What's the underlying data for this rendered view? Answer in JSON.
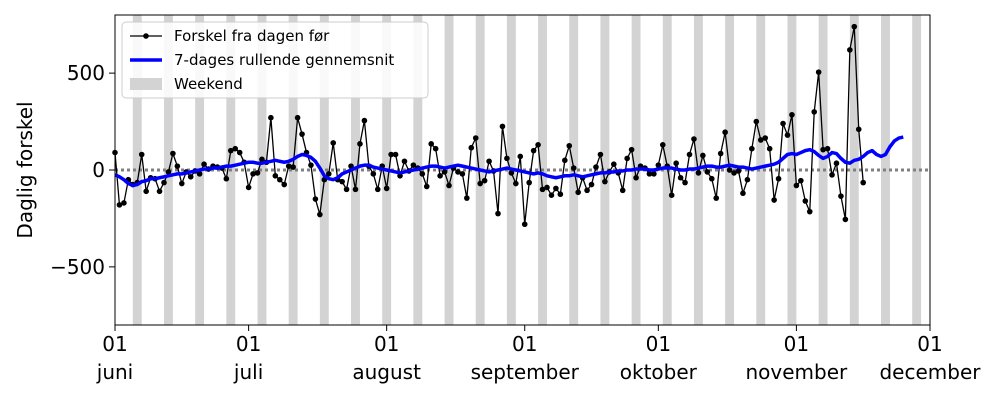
{
  "chart_data": {
    "type": "line",
    "title": "",
    "xlabel": "",
    "ylabel": "Daglig forskel",
    "xlim": [
      "2021-06-01",
      "2021-12-01"
    ],
    "ylim": [
      -800,
      800
    ],
    "y_ticks": [
      500,
      0,
      -500
    ],
    "y_tick_labels": [
      "500",
      "0",
      "−500"
    ],
    "x_ticks": [
      {
        "date": "2021-06-01",
        "day": "01",
        "month": "juni"
      },
      {
        "date": "2021-07-01",
        "day": "01",
        "month": "juli"
      },
      {
        "date": "2021-08-01",
        "day": "01",
        "month": "august"
      },
      {
        "date": "2021-09-01",
        "day": "01",
        "month": "september"
      },
      {
        "date": "2021-10-01",
        "day": "01",
        "month": "oktober"
      },
      {
        "date": "2021-11-01",
        "day": "01",
        "month": "november"
      },
      {
        "date": "2021-12-01",
        "day": "01",
        "month": "december"
      }
    ],
    "grid": false,
    "legend_position": "top-left",
    "legend": [
      {
        "label": "Forskel fra dagen før",
        "kind": "line-marker",
        "color": "#000000"
      },
      {
        "label": "7-dages rullende gennemsnit",
        "kind": "line",
        "color": "#0000ff"
      },
      {
        "label": "Weekend",
        "kind": "patch",
        "color": "#d3d3d3"
      }
    ],
    "start_date": "2021-06-01",
    "weekend_color": "#d3d3d3",
    "zero_line_color": "#808080",
    "series": [
      {
        "name": "Forskel fra dagen før",
        "color": "#000000",
        "marker": "circle",
        "values": [
          90,
          -180,
          -170,
          -50,
          -75,
          -65,
          80,
          -110,
          -40,
          -45,
          -110,
          -65,
          -10,
          85,
          20,
          -70,
          -10,
          -35,
          -5,
          -20,
          30,
          5,
          20,
          15,
          10,
          -45,
          100,
          110,
          90,
          40,
          -90,
          -20,
          -15,
          55,
          40,
          270,
          -30,
          -50,
          -75,
          20,
          15,
          270,
          185,
          90,
          25,
          -150,
          -230,
          -50,
          -20,
          140,
          -50,
          -60,
          -100,
          20,
          -100,
          135,
          255,
          20,
          -20,
          -100,
          20,
          -95,
          80,
          80,
          -30,
          45,
          -5,
          25,
          10,
          -20,
          -85,
          135,
          110,
          -30,
          -10,
          -80,
          10,
          -10,
          -20,
          -145,
          115,
          165,
          -70,
          -55,
          45,
          -5,
          -225,
          225,
          60,
          -15,
          -70,
          70,
          -280,
          -65,
          100,
          130,
          -100,
          -90,
          -130,
          -95,
          -125,
          50,
          125,
          10,
          -115,
          -40,
          -105,
          -75,
          15,
          80,
          -60,
          -10,
          30,
          -15,
          -105,
          60,
          105,
          -40,
          20,
          10,
          -20,
          -20,
          25,
          130,
          20,
          -130,
          35,
          -40,
          -65,
          80,
          160,
          -15,
          75,
          -10,
          -45,
          -145,
          85,
          195,
          0,
          -15,
          -5,
          -120,
          -50,
          110,
          250,
          155,
          165,
          110,
          -155,
          -45,
          240,
          180,
          285,
          -80,
          -55,
          -160,
          -215,
          300,
          505,
          105,
          110,
          -25,
          35,
          -135,
          -255,
          620,
          740,
          210,
          -65
        ]
      },
      {
        "name": "7-dages rullende gennemsnit",
        "color": "#0000ff",
        "values": [
          -25,
          -35,
          -50,
          -70,
          -80,
          -75,
          -60,
          -55,
          -45,
          -45,
          -40,
          -35,
          -30,
          -25,
          -20,
          -20,
          -15,
          -10,
          -5,
          0,
          5,
          5,
          10,
          10,
          15,
          20,
          20,
          25,
          30,
          35,
          40,
          40,
          35,
          35,
          40,
          45,
          50,
          45,
          40,
          45,
          55,
          70,
          80,
          75,
          65,
          45,
          10,
          -30,
          -45,
          -50,
          -40,
          -20,
          -10,
          0,
          10,
          20,
          25,
          25,
          15,
          10,
          5,
          0,
          -5,
          -10,
          -15,
          -10,
          -5,
          0,
          5,
          10,
          15,
          20,
          20,
          15,
          10,
          15,
          20,
          25,
          20,
          15,
          10,
          5,
          0,
          -5,
          -10,
          -5,
          0,
          5,
          10,
          5,
          0,
          -5,
          -10,
          -15,
          -20,
          -15,
          -20,
          -30,
          -35,
          -40,
          -35,
          -30,
          -30,
          -25,
          -30,
          -35,
          -30,
          -25,
          -20,
          -15,
          -15,
          -10,
          -10,
          -5,
          -5,
          0,
          0,
          5,
          5,
          5,
          0,
          0,
          5,
          10,
          10,
          10,
          5,
          0,
          0,
          5,
          5,
          10,
          15,
          20,
          20,
          15,
          15,
          20,
          25,
          20,
          15,
          15,
          10,
          5,
          10,
          15,
          20,
          25,
          30,
          40,
          60,
          80,
          85,
          80,
          90,
          100,
          105,
          95,
          75,
          60,
          70,
          90,
          85,
          60,
          40,
          35,
          50,
          55,
          70,
          90,
          100,
          80,
          70,
          80,
          120,
          150,
          165,
          170
        ]
      }
    ]
  }
}
